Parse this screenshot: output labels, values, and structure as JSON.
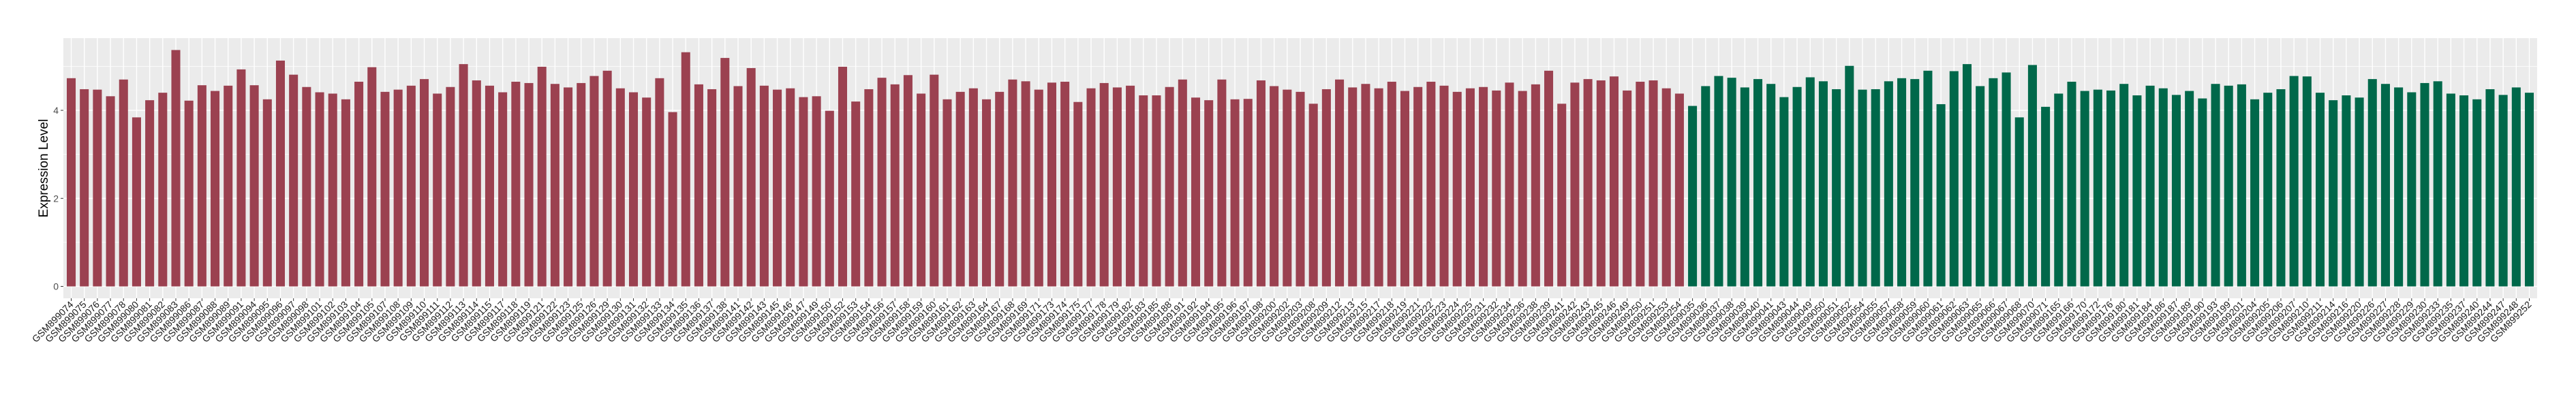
{
  "chart_data": {
    "type": "bar",
    "title": "",
    "xlabel": "",
    "ylabel": "Expression Level",
    "ylim": [
      -0.27,
      5.64
    ],
    "yticks": [
      0,
      2,
      4
    ],
    "grid": true,
    "legend": "none",
    "panel_background": "#EBEBEB",
    "groups": [
      {
        "color": "#9B4150",
        "categories": [
          "GSM899074",
          "GSM899075",
          "GSM899076",
          "GSM899077",
          "GSM899078",
          "GSM899080",
          "GSM899081",
          "GSM899082",
          "GSM899083",
          "GSM899086",
          "GSM899087",
          "GSM899088",
          "GSM899089",
          "GSM899091",
          "GSM899094",
          "GSM899095",
          "GSM899096",
          "GSM899097",
          "GSM899098",
          "GSM899101",
          "GSM899102",
          "GSM899103",
          "GSM899104",
          "GSM899105",
          "GSM899107",
          "GSM899108",
          "GSM899109",
          "GSM899110",
          "GSM899111",
          "GSM899112",
          "GSM899113",
          "GSM899114",
          "GSM899115",
          "GSM899117",
          "GSM899118",
          "GSM899119",
          "GSM899121",
          "GSM899122",
          "GSM899123",
          "GSM899125",
          "GSM899126",
          "GSM899129",
          "GSM899130",
          "GSM899131",
          "GSM899132",
          "GSM899133",
          "GSM899134",
          "GSM899135",
          "GSM899136",
          "GSM899137",
          "GSM899138",
          "GSM899141",
          "GSM899142",
          "GSM899143",
          "GSM899145",
          "GSM899146",
          "GSM899147",
          "GSM899149",
          "GSM899150",
          "GSM899152",
          "GSM899153",
          "GSM899154",
          "GSM899156",
          "GSM899157",
          "GSM899158",
          "GSM899159",
          "GSM899160",
          "GSM899161",
          "GSM899162",
          "GSM899163",
          "GSM899164",
          "GSM899167",
          "GSM899168",
          "GSM899169",
          "GSM899171",
          "GSM899173",
          "GSM899174",
          "GSM899175",
          "GSM899177",
          "GSM899178",
          "GSM899179",
          "GSM899182",
          "GSM899183",
          "GSM899185",
          "GSM899188",
          "GSM899191",
          "GSM899192",
          "GSM899194",
          "GSM899195",
          "GSM899196",
          "GSM899197",
          "GSM899198",
          "GSM899200",
          "GSM899202",
          "GSM899203",
          "GSM899208",
          "GSM899209",
          "GSM899212",
          "GSM899213",
          "GSM899215",
          "GSM899217",
          "GSM899218",
          "GSM899219",
          "GSM899221",
          "GSM899222",
          "GSM899223",
          "GSM899224",
          "GSM899225",
          "GSM899231",
          "GSM899232",
          "GSM899234",
          "GSM899236",
          "GSM899238",
          "GSM899239",
          "GSM899241",
          "GSM899242",
          "GSM899243",
          "GSM899245",
          "GSM899246",
          "GSM899249",
          "GSM899250",
          "GSM899251",
          "GSM899253",
          "GSM899254"
        ],
        "values": [
          4.73,
          4.48,
          4.47,
          4.32,
          4.7,
          3.84,
          4.23,
          4.4,
          5.37,
          4.22,
          4.57,
          4.44,
          4.56,
          4.93,
          4.57,
          4.25,
          5.13,
          4.81,
          4.53,
          4.41,
          4.38,
          4.25,
          4.65,
          4.98,
          4.42,
          4.47,
          4.56,
          4.71,
          4.38,
          4.53,
          5.05,
          4.68,
          4.56,
          4.41,
          4.65,
          4.62,
          4.99,
          4.6,
          4.52,
          4.62,
          4.78,
          4.9,
          4.5,
          4.41,
          4.29,
          4.73,
          3.96,
          5.32,
          4.59,
          4.48,
          5.19,
          4.55,
          4.96,
          4.56,
          4.47,
          4.5,
          4.3,
          4.32,
          3.99,
          4.99,
          4.2,
          4.48,
          4.74,
          4.59,
          4.8,
          4.38,
          4.81,
          4.25,
          4.42,
          4.5,
          4.25,
          4.42,
          4.7,
          4.66,
          4.47,
          4.63,
          4.65,
          4.19,
          4.5,
          4.62,
          4.52,
          4.56,
          4.34,
          4.34,
          4.53,
          4.7,
          4.29,
          4.23,
          4.7,
          4.25,
          4.26,
          4.68,
          4.55,
          4.47,
          4.42,
          4.15,
          4.48,
          4.7,
          4.52,
          4.6,
          4.5,
          4.65,
          4.44,
          4.53,
          4.65,
          4.56,
          4.42,
          4.5,
          4.53,
          4.45,
          4.63,
          4.44,
          4.59,
          4.9,
          4.15,
          4.63,
          4.71,
          4.68,
          4.77,
          4.45,
          4.65,
          4.68,
          4.5,
          4.38
        ]
      },
      {
        "color": "#00684A",
        "categories": [
          "GSM899035",
          "GSM899036",
          "GSM899037",
          "GSM899038",
          "GSM899039",
          "GSM899040",
          "GSM899041",
          "GSM899043",
          "GSM899044",
          "GSM899049",
          "GSM899050",
          "GSM899051",
          "GSM899052",
          "GSM899054",
          "GSM899055",
          "GSM899057",
          "GSM899058",
          "GSM899059",
          "GSM899060",
          "GSM899061",
          "GSM899062",
          "GSM899063",
          "GSM899065",
          "GSM899066",
          "GSM899067",
          "GSM899068",
          "GSM899070",
          "GSM899071",
          "GSM899165",
          "GSM899166",
          "GSM899170",
          "GSM899172",
          "GSM899176",
          "GSM899180",
          "GSM899181",
          "GSM899184",
          "GSM899186",
          "GSM899187",
          "GSM899189",
          "GSM899190",
          "GSM899193",
          "GSM899199",
          "GSM899201",
          "GSM899204",
          "GSM899205",
          "GSM899206",
          "GSM899207",
          "GSM899210",
          "GSM899211",
          "GSM899214",
          "GSM899216",
          "GSM899220",
          "GSM899226",
          "GSM899227",
          "GSM899228",
          "GSM899229",
          "GSM899230",
          "GSM899233",
          "GSM899235",
          "GSM899237",
          "GSM899240",
          "GSM899244",
          "GSM899247",
          "GSM899248",
          "GSM899252"
        ],
        "values": [
          4.1,
          4.55,
          4.78,
          4.74,
          4.52,
          4.71,
          4.6,
          4.3,
          4.53,
          4.75,
          4.66,
          4.48,
          5.01,
          4.47,
          4.48,
          4.66,
          4.73,
          4.71,
          4.9,
          4.14,
          4.89,
          5.05,
          4.55,
          4.73,
          4.86,
          3.84,
          5.03,
          4.08,
          4.38,
          4.65,
          4.44,
          4.47,
          4.45,
          4.6,
          4.34,
          4.56,
          4.5,
          4.35,
          4.44,
          4.27,
          4.6,
          4.56,
          4.59,
          4.25,
          4.4,
          4.48,
          4.78,
          4.77,
          4.4,
          4.23,
          4.34,
          4.29,
          4.71,
          4.6,
          4.52,
          4.41,
          4.62,
          4.66,
          4.38,
          4.34,
          4.25,
          4.48,
          4.35,
          4.52,
          4.4
        ]
      }
    ]
  }
}
